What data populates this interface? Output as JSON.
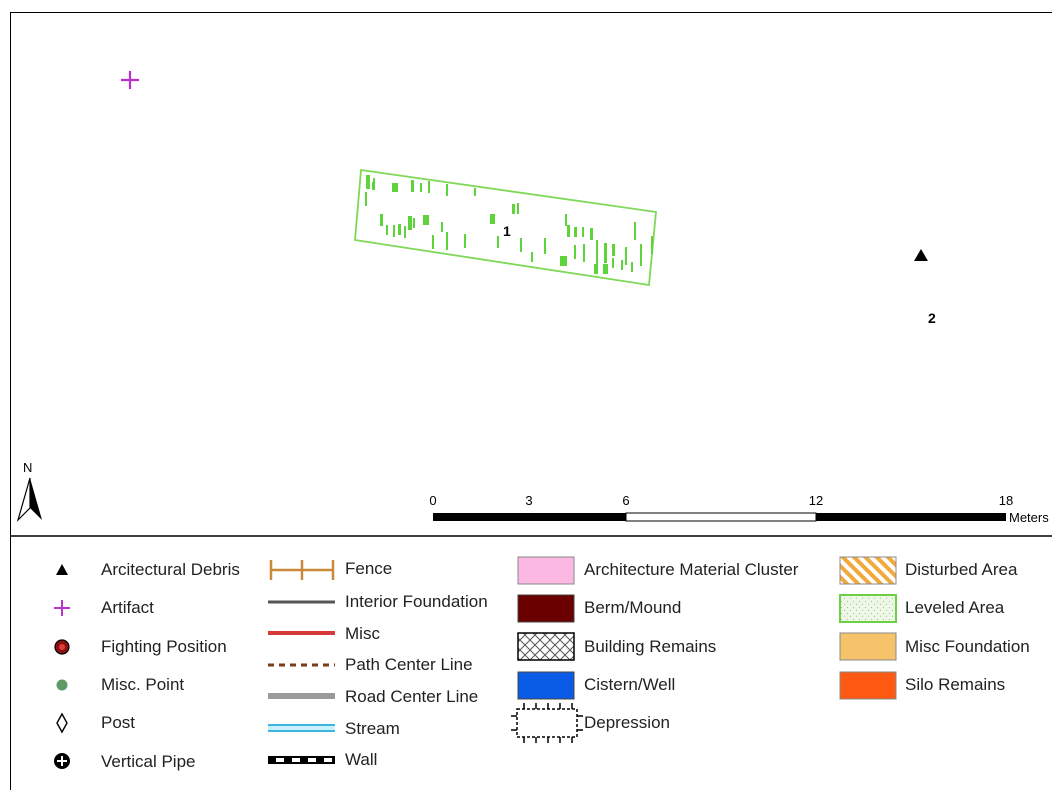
{
  "map": {
    "features": [
      {
        "id": "1",
        "type": "Leveled Area"
      },
      {
        "id": "2",
        "type": "Arcitectural Debris"
      }
    ],
    "north_label": "N",
    "scale": {
      "ticks": [
        "0",
        "3",
        "6",
        "12",
        "18"
      ],
      "unit": "Meters"
    },
    "colors": {
      "leveled_area": "#7ed957",
      "artifact": "#b833c8",
      "border": "#000000"
    }
  },
  "legend": {
    "points": [
      {
        "label": "Arcitectural Debris",
        "icon": "triangle-icon"
      },
      {
        "label": "Artifact",
        "icon": "cross-icon"
      },
      {
        "label": "Fighting Position",
        "icon": "target-icon"
      },
      {
        "label": "Misc. Point",
        "icon": "dot-icon"
      },
      {
        "label": "Post",
        "icon": "diamond-icon"
      },
      {
        "label": "Vertical Pipe",
        "icon": "plus-circle-icon"
      }
    ],
    "lines": [
      {
        "label": "Fence",
        "icon": "fence-icon"
      },
      {
        "label": "Interior Foundation",
        "icon": "line-icon"
      },
      {
        "label": "Misc",
        "icon": "line-icon"
      },
      {
        "label": "Path Center Line",
        "icon": "dashed-line-icon"
      },
      {
        "label": "Road Center Line",
        "icon": "line-icon"
      },
      {
        "label": "Stream",
        "icon": "double-line-icon"
      },
      {
        "label": "Wall",
        "icon": "checkered-line-icon"
      }
    ],
    "areas_a": [
      {
        "label": "Architecture Material Cluster",
        "color": "#fbb8e3"
      },
      {
        "label": "Berm/Mound",
        "color": "#6b0000"
      },
      {
        "label": "Building Remains",
        "color": "crosshatch"
      },
      {
        "label": "Cistern/Well",
        "color": "#0a5be6"
      },
      {
        "label": "Depression",
        "color": "ticked-outline"
      }
    ],
    "areas_b": [
      {
        "label": "Disturbed Area",
        "color": "#f2a93b"
      },
      {
        "label": "Leveled Area",
        "color": "#7ed957"
      },
      {
        "label": "Misc Foundation",
        "color": "#f6c36b"
      },
      {
        "label": "Silo Remains",
        "color": "#ff5a14"
      }
    ]
  }
}
